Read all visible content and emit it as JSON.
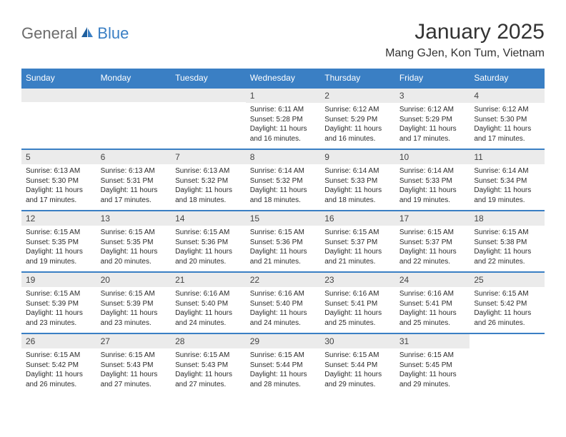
{
  "brand": {
    "part1": "General",
    "part2": "Blue"
  },
  "title": "January 2025",
  "location": "Mang GJen, Kon Tum, Vietnam",
  "colors": {
    "header_bg": "#3a7fc4",
    "header_text": "#ffffff",
    "daynum_bg": "#ebebeb",
    "border": "#3a7fc4",
    "text": "#2b2b2b",
    "logo_gray": "#6b6b6b",
    "logo_blue": "#3a7fc4"
  },
  "day_names": [
    "Sunday",
    "Monday",
    "Tuesday",
    "Wednesday",
    "Thursday",
    "Friday",
    "Saturday"
  ],
  "weeks": [
    [
      {
        "n": "",
        "sr": "",
        "ss": "",
        "dl": ""
      },
      {
        "n": "",
        "sr": "",
        "ss": "",
        "dl": ""
      },
      {
        "n": "",
        "sr": "",
        "ss": "",
        "dl": ""
      },
      {
        "n": "1",
        "sr": "Sunrise: 6:11 AM",
        "ss": "Sunset: 5:28 PM",
        "dl": "Daylight: 11 hours and 16 minutes."
      },
      {
        "n": "2",
        "sr": "Sunrise: 6:12 AM",
        "ss": "Sunset: 5:29 PM",
        "dl": "Daylight: 11 hours and 16 minutes."
      },
      {
        "n": "3",
        "sr": "Sunrise: 6:12 AM",
        "ss": "Sunset: 5:29 PM",
        "dl": "Daylight: 11 hours and 17 minutes."
      },
      {
        "n": "4",
        "sr": "Sunrise: 6:12 AM",
        "ss": "Sunset: 5:30 PM",
        "dl": "Daylight: 11 hours and 17 minutes."
      }
    ],
    [
      {
        "n": "5",
        "sr": "Sunrise: 6:13 AM",
        "ss": "Sunset: 5:30 PM",
        "dl": "Daylight: 11 hours and 17 minutes."
      },
      {
        "n": "6",
        "sr": "Sunrise: 6:13 AM",
        "ss": "Sunset: 5:31 PM",
        "dl": "Daylight: 11 hours and 17 minutes."
      },
      {
        "n": "7",
        "sr": "Sunrise: 6:13 AM",
        "ss": "Sunset: 5:32 PM",
        "dl": "Daylight: 11 hours and 18 minutes."
      },
      {
        "n": "8",
        "sr": "Sunrise: 6:14 AM",
        "ss": "Sunset: 5:32 PM",
        "dl": "Daylight: 11 hours and 18 minutes."
      },
      {
        "n": "9",
        "sr": "Sunrise: 6:14 AM",
        "ss": "Sunset: 5:33 PM",
        "dl": "Daylight: 11 hours and 18 minutes."
      },
      {
        "n": "10",
        "sr": "Sunrise: 6:14 AM",
        "ss": "Sunset: 5:33 PM",
        "dl": "Daylight: 11 hours and 19 minutes."
      },
      {
        "n": "11",
        "sr": "Sunrise: 6:14 AM",
        "ss": "Sunset: 5:34 PM",
        "dl": "Daylight: 11 hours and 19 minutes."
      }
    ],
    [
      {
        "n": "12",
        "sr": "Sunrise: 6:15 AM",
        "ss": "Sunset: 5:35 PM",
        "dl": "Daylight: 11 hours and 19 minutes."
      },
      {
        "n": "13",
        "sr": "Sunrise: 6:15 AM",
        "ss": "Sunset: 5:35 PM",
        "dl": "Daylight: 11 hours and 20 minutes."
      },
      {
        "n": "14",
        "sr": "Sunrise: 6:15 AM",
        "ss": "Sunset: 5:36 PM",
        "dl": "Daylight: 11 hours and 20 minutes."
      },
      {
        "n": "15",
        "sr": "Sunrise: 6:15 AM",
        "ss": "Sunset: 5:36 PM",
        "dl": "Daylight: 11 hours and 21 minutes."
      },
      {
        "n": "16",
        "sr": "Sunrise: 6:15 AM",
        "ss": "Sunset: 5:37 PM",
        "dl": "Daylight: 11 hours and 21 minutes."
      },
      {
        "n": "17",
        "sr": "Sunrise: 6:15 AM",
        "ss": "Sunset: 5:37 PM",
        "dl": "Daylight: 11 hours and 22 minutes."
      },
      {
        "n": "18",
        "sr": "Sunrise: 6:15 AM",
        "ss": "Sunset: 5:38 PM",
        "dl": "Daylight: 11 hours and 22 minutes."
      }
    ],
    [
      {
        "n": "19",
        "sr": "Sunrise: 6:15 AM",
        "ss": "Sunset: 5:39 PM",
        "dl": "Daylight: 11 hours and 23 minutes."
      },
      {
        "n": "20",
        "sr": "Sunrise: 6:15 AM",
        "ss": "Sunset: 5:39 PM",
        "dl": "Daylight: 11 hours and 23 minutes."
      },
      {
        "n": "21",
        "sr": "Sunrise: 6:16 AM",
        "ss": "Sunset: 5:40 PM",
        "dl": "Daylight: 11 hours and 24 minutes."
      },
      {
        "n": "22",
        "sr": "Sunrise: 6:16 AM",
        "ss": "Sunset: 5:40 PM",
        "dl": "Daylight: 11 hours and 24 minutes."
      },
      {
        "n": "23",
        "sr": "Sunrise: 6:16 AM",
        "ss": "Sunset: 5:41 PM",
        "dl": "Daylight: 11 hours and 25 minutes."
      },
      {
        "n": "24",
        "sr": "Sunrise: 6:16 AM",
        "ss": "Sunset: 5:41 PM",
        "dl": "Daylight: 11 hours and 25 minutes."
      },
      {
        "n": "25",
        "sr": "Sunrise: 6:15 AM",
        "ss": "Sunset: 5:42 PM",
        "dl": "Daylight: 11 hours and 26 minutes."
      }
    ],
    [
      {
        "n": "26",
        "sr": "Sunrise: 6:15 AM",
        "ss": "Sunset: 5:42 PM",
        "dl": "Daylight: 11 hours and 26 minutes."
      },
      {
        "n": "27",
        "sr": "Sunrise: 6:15 AM",
        "ss": "Sunset: 5:43 PM",
        "dl": "Daylight: 11 hours and 27 minutes."
      },
      {
        "n": "28",
        "sr": "Sunrise: 6:15 AM",
        "ss": "Sunset: 5:43 PM",
        "dl": "Daylight: 11 hours and 27 minutes."
      },
      {
        "n": "29",
        "sr": "Sunrise: 6:15 AM",
        "ss": "Sunset: 5:44 PM",
        "dl": "Daylight: 11 hours and 28 minutes."
      },
      {
        "n": "30",
        "sr": "Sunrise: 6:15 AM",
        "ss": "Sunset: 5:44 PM",
        "dl": "Daylight: 11 hours and 29 minutes."
      },
      {
        "n": "31",
        "sr": "Sunrise: 6:15 AM",
        "ss": "Sunset: 5:45 PM",
        "dl": "Daylight: 11 hours and 29 minutes."
      },
      {
        "n": "",
        "sr": "",
        "ss": "",
        "dl": ""
      }
    ]
  ]
}
